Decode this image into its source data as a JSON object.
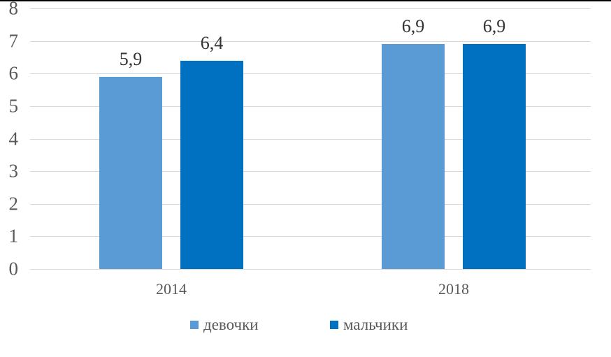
{
  "figure": {
    "background": "#ffffff",
    "top_border_color": "#000000"
  },
  "chart_data": {
    "type": "bar",
    "title": "",
    "xlabel": "",
    "ylabel": "",
    "categories": [
      "2014",
      "2018"
    ],
    "series": [
      {
        "name": "девочки",
        "color": "#5B9BD5",
        "values": [
          5.9,
          6.9
        ]
      },
      {
        "name": "мальчики",
        "color": "#0070C0",
        "values": [
          6.4,
          6.9
        ]
      }
    ],
    "value_labels": [
      [
        "5,9",
        "6,4"
      ],
      [
        "6,9",
        "6,9"
      ]
    ],
    "decimal_separator": ",",
    "ylim": [
      0,
      8
    ],
    "yticks": [
      0,
      1,
      2,
      3,
      4,
      5,
      6,
      7,
      8
    ],
    "ytick_labels": [
      "0",
      "1",
      "2",
      "3",
      "4",
      "5",
      "6",
      "7",
      "8"
    ],
    "grid": true,
    "gridline_color": "#D9D9D9",
    "axis_line_color": "#D9D9D9",
    "tick_label_color": "#595959",
    "category_label_color": "#595959",
    "data_label_color": "#333333",
    "legend_text_color": "#595959",
    "legend_position": "bottom"
  }
}
